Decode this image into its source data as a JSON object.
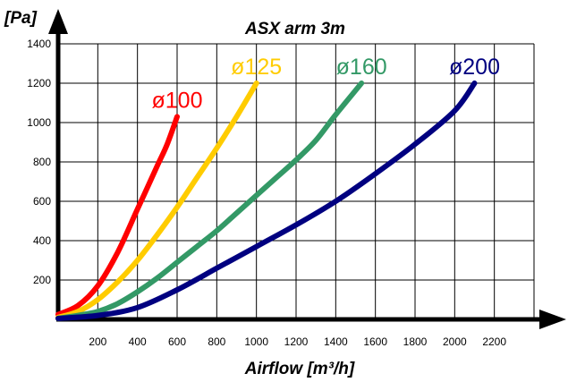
{
  "chart_data": {
    "type": "line",
    "title": "ASX arm 3m",
    "xlabel": "Airflow [m³/h]",
    "ylabel": "[Pa]",
    "xlim": [
      0,
      2400
    ],
    "ylim": [
      0,
      1400
    ],
    "x_ticks": [
      "200",
      "400",
      "600",
      "800",
      "1000",
      "1200",
      "1400",
      "1600",
      "1800",
      "2000",
      "2200"
    ],
    "y_ticks": [
      "200",
      "400",
      "600",
      "800",
      "1000",
      "1200",
      "1400"
    ],
    "grid": true,
    "series": [
      {
        "name": "ø100",
        "color": "#ff0000",
        "x": [
          0,
          100,
          200,
          300,
          400,
          500,
          550,
          600
        ],
        "y": [
          25,
          70,
          170,
          340,
          560,
          780,
          890,
          1030
        ]
      },
      {
        "name": "ø125",
        "color": "#ffcc00",
        "x": [
          0,
          100,
          200,
          300,
          400,
          500,
          600,
          700,
          800,
          900,
          1000
        ],
        "y": [
          10,
          40,
          100,
          190,
          300,
          430,
          570,
          720,
          870,
          1030,
          1200
        ]
      },
      {
        "name": "ø160",
        "color": "#339966",
        "x": [
          0,
          100,
          200,
          300,
          400,
          500,
          600,
          700,
          800,
          900,
          1000,
          1100,
          1200,
          1300,
          1400,
          1530
        ],
        "y": [
          5,
          20,
          40,
          80,
          140,
          210,
          290,
          370,
          450,
          540,
          630,
          720,
          810,
          910,
          1040,
          1200
        ]
      },
      {
        "name": "ø200",
        "color": "#000080",
        "x": [
          0,
          200,
          400,
          600,
          800,
          1000,
          1200,
          1400,
          1600,
          1800,
          2000,
          2100
        ],
        "y": [
          5,
          20,
          60,
          150,
          260,
          370,
          480,
          600,
          740,
          890,
          1060,
          1200
        ]
      }
    ]
  }
}
